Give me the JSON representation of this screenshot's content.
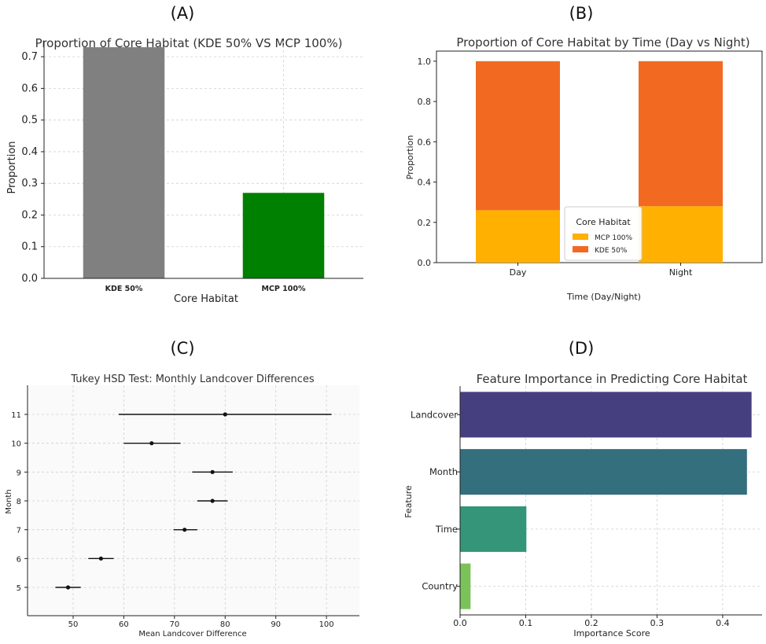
{
  "panels": [
    {
      "label": "(A)"
    },
    {
      "label": "(B)"
    },
    {
      "label": "(C)"
    },
    {
      "label": "(D)"
    }
  ],
  "chart_data": [
    {
      "type": "bar",
      "title": "Proportion of Core Habitat (KDE 50% VS MCP 100%)",
      "xlabel": "Core Habitat",
      "ylabel": "Proportion",
      "categories": [
        "KDE 50%",
        "MCP 100%"
      ],
      "values": [
        0.73,
        0.27
      ],
      "colors": [
        "#808080",
        "#008000"
      ],
      "ylim": [
        0,
        0.75
      ],
      "yticks": [
        0.0,
        0.1,
        0.2,
        0.3,
        0.4,
        0.5,
        0.6,
        0.7
      ],
      "ytick_labels": [
        "0.0",
        "0.1",
        "0.2",
        "0.3",
        "0.4",
        "0.5",
        "0.6",
        "0.7"
      ],
      "grid": true
    },
    {
      "type": "bar",
      "stacked": true,
      "title": "Proportion of Core Habitat by Time (Day vs Night)",
      "xlabel": "Time (Day/Night)",
      "ylabel": "Proportion",
      "categories": [
        "Day",
        "Night"
      ],
      "series": [
        {
          "name": "MCP 100%",
          "values": [
            0.26,
            0.28
          ],
          "color": "#FFB000"
        },
        {
          "name": "KDE 50%",
          "values": [
            0.74,
            0.72
          ],
          "color": "#F26A21"
        }
      ],
      "legend_title": "Core Habitat",
      "legend_position": "center",
      "ylim": [
        0,
        1.05
      ],
      "yticks": [
        0.0,
        0.2,
        0.4,
        0.6,
        0.8,
        1.0
      ],
      "ytick_labels": [
        "0.0",
        "0.2",
        "0.4",
        "0.6",
        "0.8",
        "1.0"
      ],
      "grid": false
    },
    {
      "type": "scatter",
      "subtype": "interval",
      "title": "Tukey HSD Test: Monthly Landcover Differences",
      "xlabel": "Mean Landcover Difference",
      "ylabel": "Month",
      "categories": [
        "5",
        "6",
        "7",
        "8",
        "9",
        "10",
        "11"
      ],
      "means": [
        49,
        55.5,
        72,
        77.5,
        77.5,
        65.5,
        80
      ],
      "lower": [
        46.5,
        53,
        69.8,
        74.5,
        73.5,
        60,
        59
      ],
      "upper": [
        51.5,
        58,
        74.5,
        80.5,
        81.5,
        71.2,
        101
      ],
      "xlim": [
        41,
        106.5
      ],
      "xticks": [
        50,
        60,
        70,
        80,
        90,
        100
      ],
      "xtick_labels": [
        "50",
        "60",
        "70",
        "80",
        "90",
        "100"
      ],
      "grid": true
    },
    {
      "type": "bar",
      "orientation": "horizontal",
      "title": "Feature Importance in Predicting Core Habitat",
      "xlabel": "Importance Score",
      "ylabel": "Feature",
      "categories": [
        "Landcover",
        "Month",
        "Time",
        "Country"
      ],
      "values": [
        0.444,
        0.437,
        0.101,
        0.016
      ],
      "colors": [
        "#463F7F",
        "#346F7E",
        "#349578",
        "#7BC25B"
      ],
      "xlim": [
        0,
        0.46
      ],
      "xticks": [
        0.0,
        0.1,
        0.2,
        0.3,
        0.4
      ],
      "xtick_labels": [
        "0.0",
        "0.1",
        "0.2",
        "0.3",
        "0.4"
      ],
      "grid": true
    }
  ]
}
